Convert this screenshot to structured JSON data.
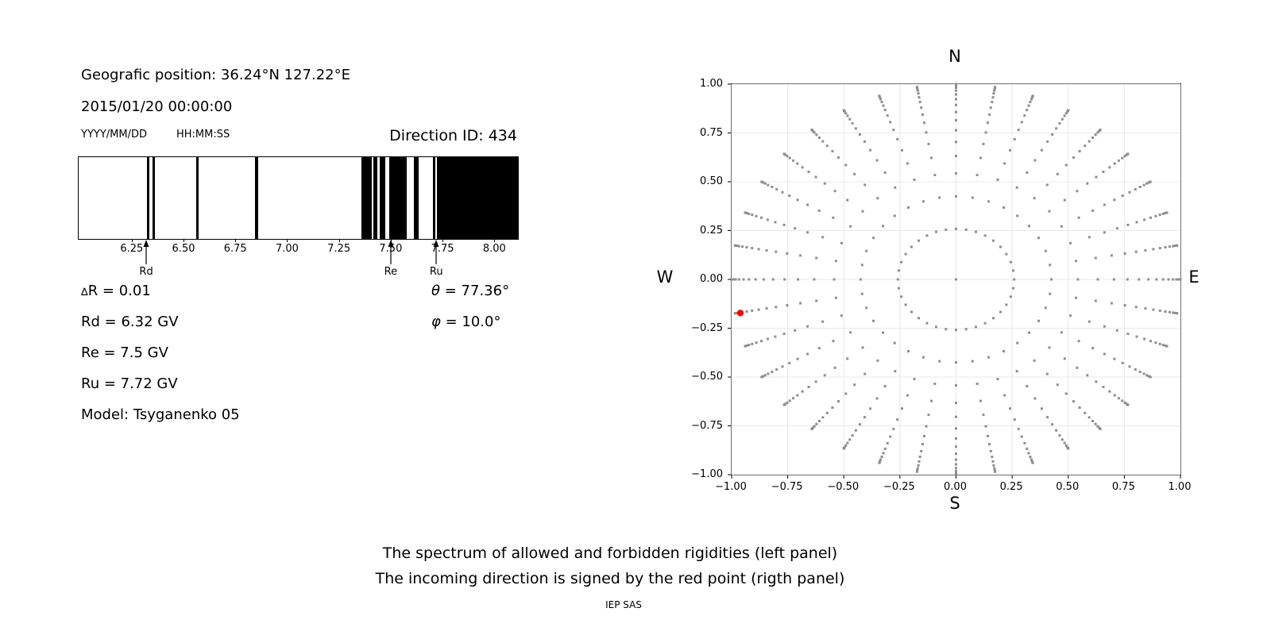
{
  "header": {
    "geo_position": "Geografic position: 36.24°N 127.22°E",
    "datetime": "2015/01/20 00:00:00",
    "date_format": "YYYY/MM/DD",
    "time_format": "HH:MM:SS",
    "direction_id": "Direction ID: 434"
  },
  "stats": {
    "delta_symbol": "∆",
    "delta_rest": "R = 0.01",
    "rd": "Rd = 6.32 GV",
    "re": "Re = 7.5 GV",
    "ru": "Ru = 7.72 GV",
    "model": "Model: Tsyganenko 05",
    "theta_symbol": "θ",
    "theta_rest": " = 77.36°",
    "phi_symbol": "φ",
    "phi_rest": " = 10.0°"
  },
  "captions": {
    "lines": [
      "The spectrum of allowed and forbidden rigidities (left panel)",
      "The incoming direction is signed by the red point (rigth panel)"
    ],
    "credit": "IEP SAS"
  },
  "chart_data": [
    {
      "id": "rigidity-spectrum",
      "type": "barcode",
      "description": "Spectrum of allowed (white) and forbidden (black) rigidities in GV",
      "xlim": [
        5.99,
        8.11
      ],
      "xtick_values": [
        6.25,
        6.5,
        6.75,
        7.0,
        7.25,
        7.5,
        7.75,
        8.0
      ],
      "xtick_labels": [
        "6.25",
        "6.50",
        "6.75",
        "7.00",
        "7.25",
        "7.50",
        "7.75",
        "8.00"
      ],
      "forbidden_bands": [
        [
          6.318,
          6.333
        ],
        [
          6.347,
          6.36
        ],
        [
          6.556,
          6.571
        ],
        [
          6.842,
          6.857
        ],
        [
          7.356,
          7.404
        ],
        [
          7.414,
          7.433
        ],
        [
          7.441,
          7.468
        ],
        [
          7.49,
          7.575
        ],
        [
          7.607,
          7.63
        ],
        [
          7.7,
          7.712
        ],
        [
          7.72,
          8.11
        ]
      ],
      "arrows": [
        {
          "label": "Rd",
          "x": 6.32
        },
        {
          "label": "Re",
          "x": 7.5
        },
        {
          "label": "Ru",
          "x": 7.72
        }
      ],
      "bar_color": "#000000"
    },
    {
      "id": "direction-map",
      "type": "scatter",
      "description": "Sky map of viewing directions; rays every 10° azimuth, radius = sin(zenith); red point marks incoming direction",
      "xlim": [
        -1,
        1
      ],
      "ylim": [
        -1,
        1
      ],
      "xtick_values": [
        -1,
        -0.75,
        -0.5,
        -0.25,
        0,
        0.25,
        0.5,
        0.75,
        1
      ],
      "xtick_labels": [
        "−1.00",
        "−0.75",
        "−0.50",
        "−0.25",
        "0.00",
        "0.25",
        "0.50",
        "0.75",
        "1.00"
      ],
      "ytick_values": [
        -1,
        -0.75,
        -0.5,
        -0.25,
        0,
        0.25,
        0.5,
        0.75,
        1
      ],
      "ytick_labels": [
        "−1.00",
        "−0.75",
        "−0.50",
        "−0.25",
        "0.00",
        "0.25",
        "0.50",
        "0.75",
        "1.00"
      ],
      "compass": {
        "top": "N",
        "bottom": "S",
        "left": "W",
        "right": "E"
      },
      "grid_on": true,
      "grid_color": "#e8e8e8",
      "dot_color": "#8e8e8e",
      "ray_count": 36,
      "ray_azimuth_step_deg": 10,
      "ray_radii": [
        0.259,
        0.425,
        0.543,
        0.632,
        0.704,
        0.764,
        0.815,
        0.857,
        0.893,
        0.923,
        0.947,
        0.967,
        0.982,
        0.992,
        0.998,
        1.0
      ],
      "center_dot": true,
      "red_point": {
        "x": -0.961,
        "y": -0.172,
        "color": "#ff0000"
      }
    }
  ]
}
